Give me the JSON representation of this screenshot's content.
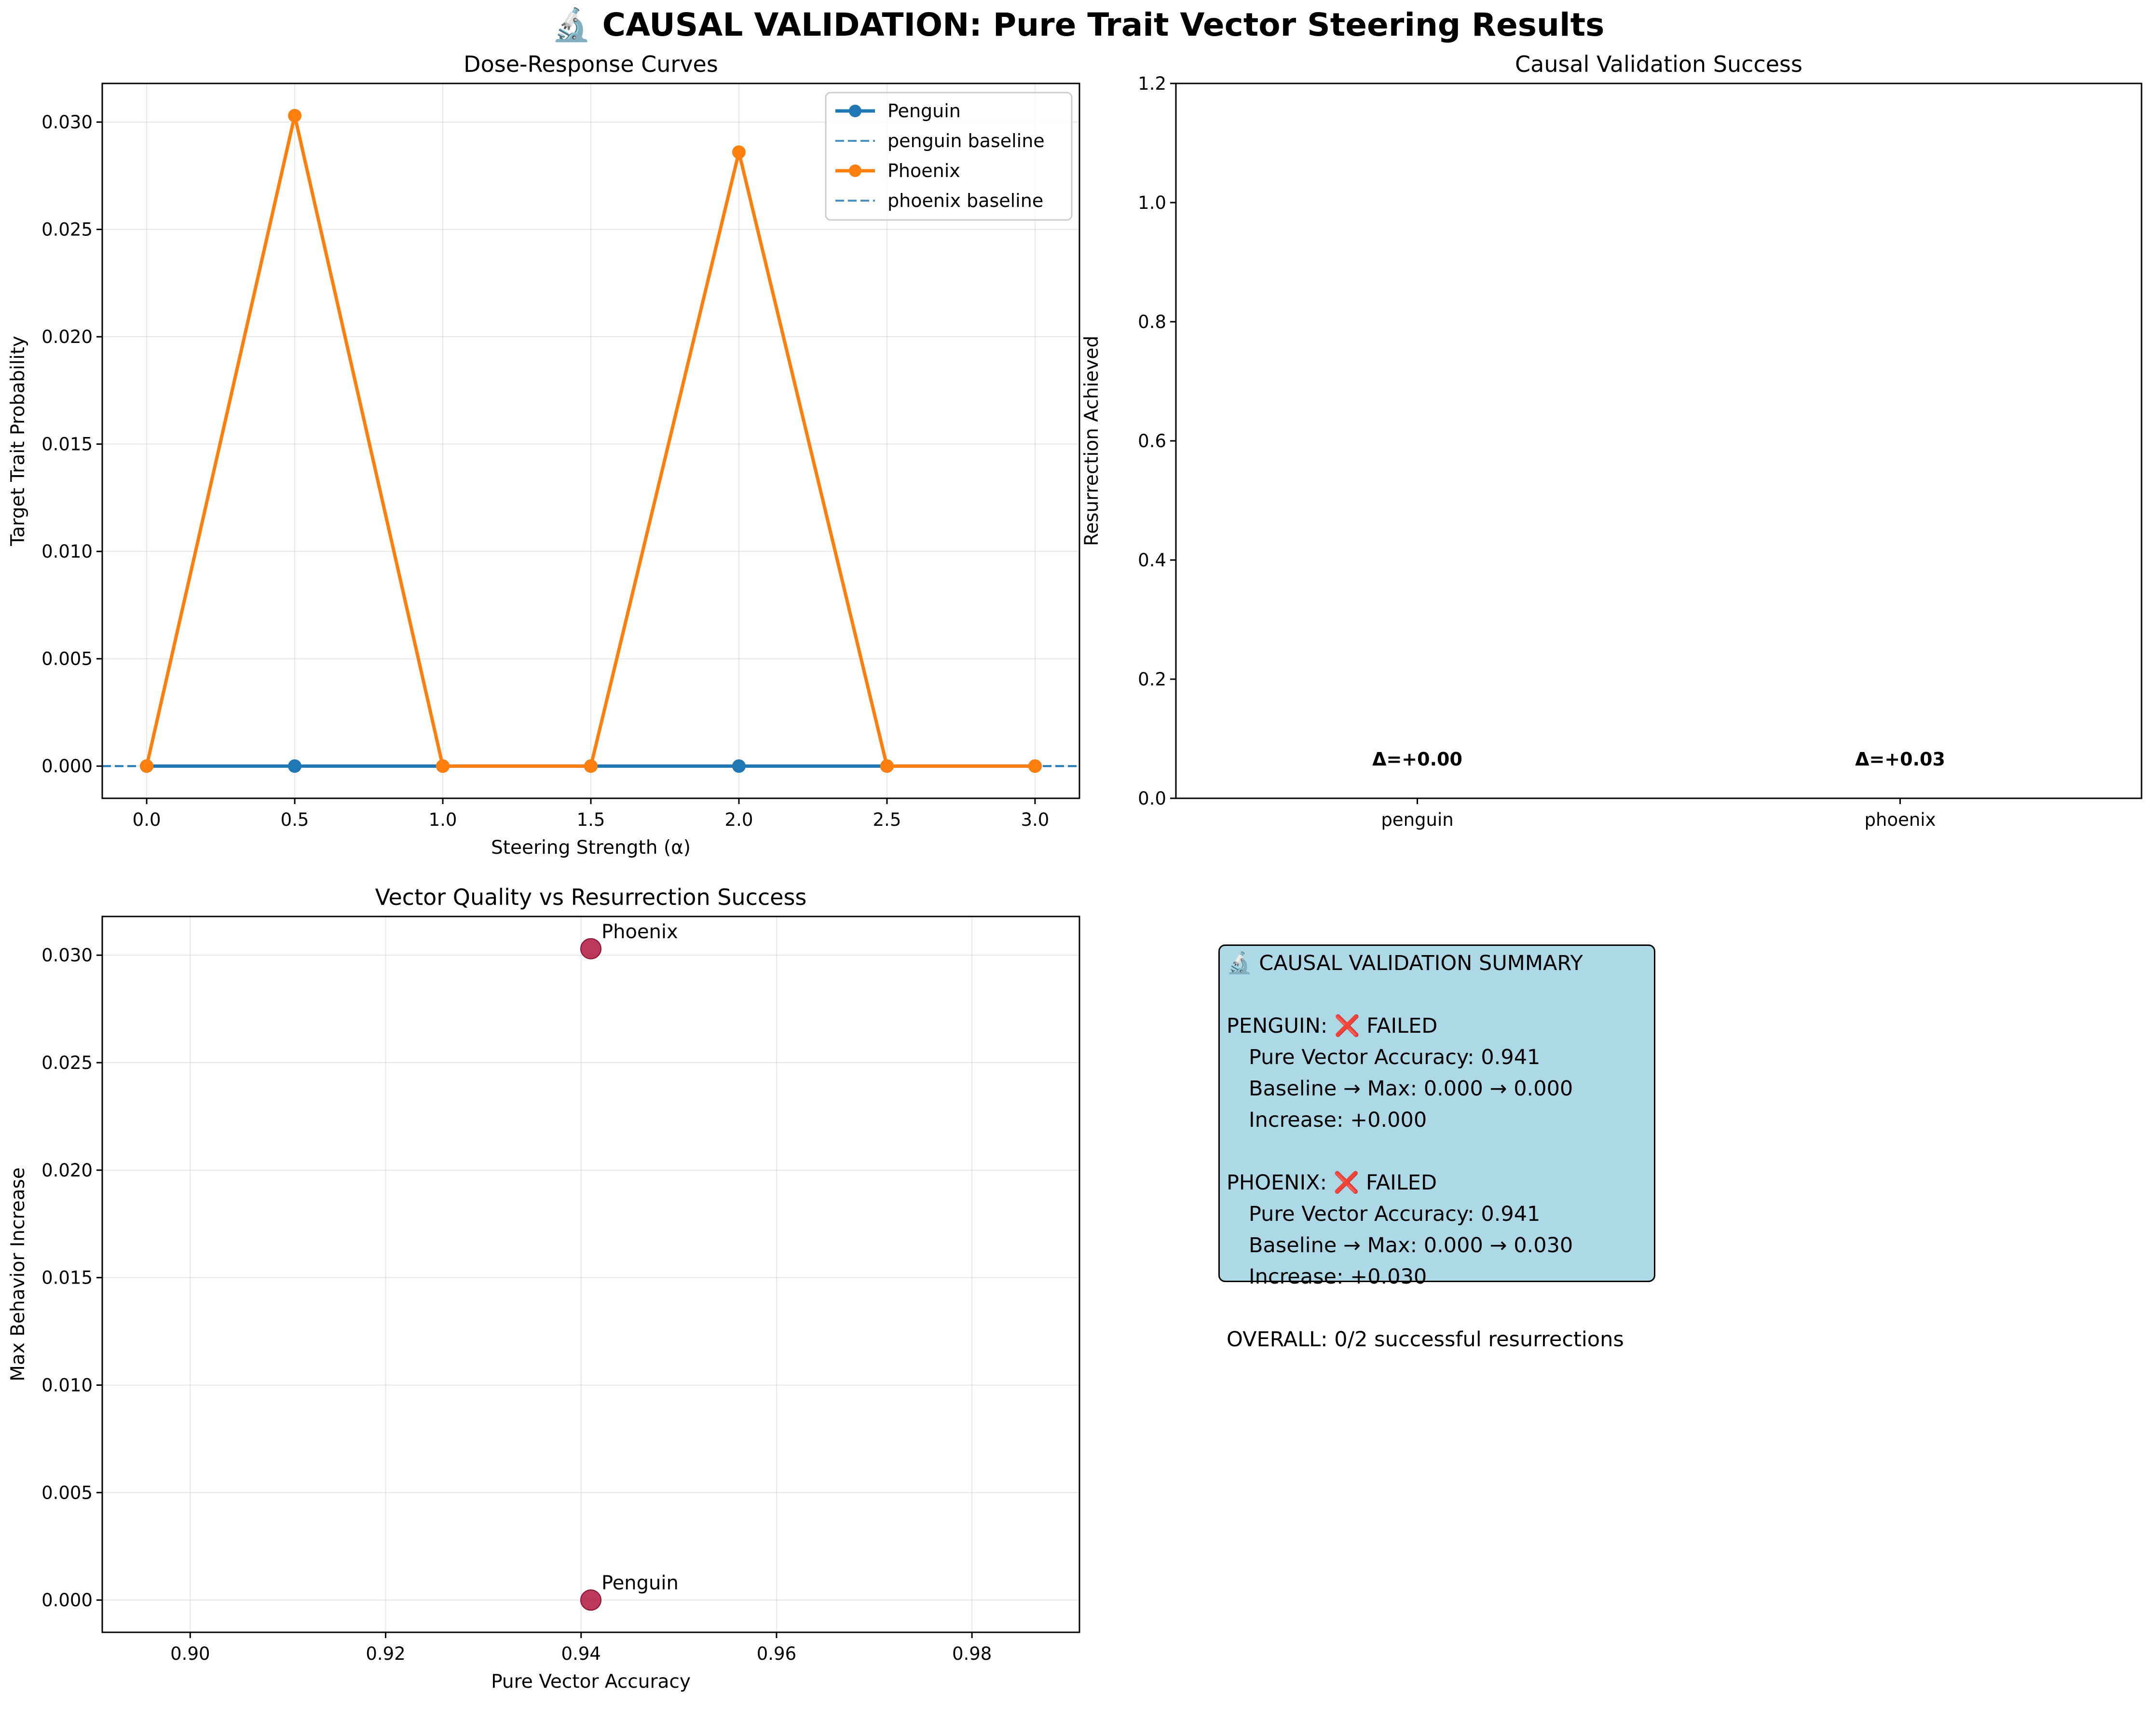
{
  "title": "🔬 CAUSAL VALIDATION: Pure Trait Vector Steering Results",
  "colors": {
    "penguin": "#1f77b4",
    "phoenix": "#ff7f0e",
    "scatter": "#b2163f",
    "summary_bg": "#add8e6"
  },
  "chart_data": [
    {
      "type": "line",
      "title": "Dose-Response Curves",
      "xlabel": "Steering Strength (α)",
      "ylabel": "Target Trait Probability",
      "xlim": [
        -0.15,
        3.15
      ],
      "ylim": [
        -0.0015,
        0.0318
      ],
      "xticks": [
        "0.0",
        "0.5",
        "1.0",
        "1.5",
        "2.0",
        "2.5",
        "3.0"
      ],
      "yticks": [
        "0.000",
        "0.005",
        "0.010",
        "0.015",
        "0.020",
        "0.025",
        "0.030"
      ],
      "grid": true,
      "legend_position": "top-right",
      "x": [
        0.0,
        0.5,
        1.0,
        1.5,
        2.0,
        2.5,
        3.0
      ],
      "series": [
        {
          "name": "Penguin",
          "values": [
            0,
            0,
            0,
            0,
            0,
            0,
            0
          ]
        },
        {
          "name": "Phoenix",
          "values": [
            0,
            0.0303,
            0,
            0,
            0.0286,
            0,
            0
          ]
        }
      ],
      "baselines": [
        {
          "name": "penguin baseline",
          "value": 0
        },
        {
          "name": "phoenix baseline",
          "value": 0
        }
      ]
    },
    {
      "type": "bar",
      "title": "Causal Validation Success",
      "ylabel": "Resurrection Achieved",
      "categories": [
        "penguin",
        "phoenix"
      ],
      "values": [
        0,
        0
      ],
      "ylim": [
        0,
        1.2
      ],
      "yticks": [
        "0.0",
        "0.2",
        "0.4",
        "0.6",
        "0.8",
        "1.0",
        "1.2"
      ],
      "annotations": [
        "Δ=+0.00",
        "Δ=+0.03"
      ]
    },
    {
      "type": "scatter",
      "title": "Vector Quality vs Resurrection Success",
      "xlabel": "Pure Vector Accuracy",
      "ylabel": "Max Behavior Increase",
      "xlim": [
        0.891,
        0.991
      ],
      "ylim": [
        -0.0015,
        0.0318
      ],
      "xticks": [
        "0.90",
        "0.92",
        "0.94",
        "0.96",
        "0.98"
      ],
      "yticks": [
        "0.000",
        "0.005",
        "0.010",
        "0.015",
        "0.020",
        "0.025",
        "0.030"
      ],
      "grid": true,
      "points": [
        {
          "label": "Penguin",
          "x": 0.941,
          "y": 0.0
        },
        {
          "label": "Phoenix",
          "x": 0.941,
          "y": 0.0303
        }
      ]
    }
  ],
  "summary": {
    "heading": "🔬 CAUSAL VALIDATION SUMMARY",
    "penguin_status": "PENGUIN: ❌ FAILED",
    "penguin_accuracy": "Pure Vector Accuracy: 0.941",
    "penguin_baseline": "Baseline → Max: 0.000 → 0.000",
    "penguin_increase": "Increase: +0.000",
    "phoenix_status": "PHOENIX: ❌ FAILED",
    "phoenix_accuracy": "Pure Vector Accuracy: 0.941",
    "phoenix_baseline": "Baseline → Max: 0.000 → 0.030",
    "phoenix_increase": "Increase: +0.030",
    "overall": "OVERALL: 0/2 successful resurrections"
  }
}
